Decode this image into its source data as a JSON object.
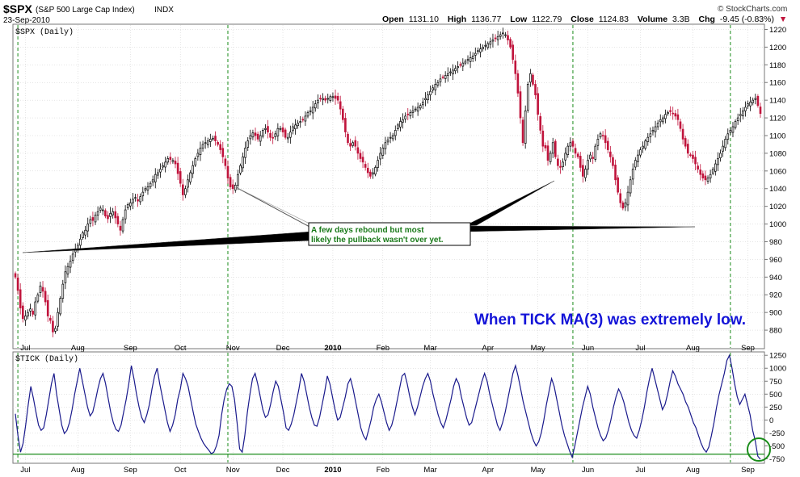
{
  "header": {
    "symbol": "$SPX",
    "name": "(S&P 500 Large Cap Index)",
    "exchange": "INDX",
    "date": "23-Sep-2010",
    "brand": "© StockCharts.com",
    "open_label": "Open",
    "open_value": "1131.10",
    "high_label": "High",
    "high_value": "1136.77",
    "low_label": "Low",
    "low_value": "1122.79",
    "close_label": "Close",
    "close_value": "1124.83",
    "volume_label": "Volume",
    "volume_value": "3.3B",
    "chg_label": "Chg",
    "chg_value": "-9.45 (-0.83%)",
    "chg_marker": "▼"
  },
  "colors": {
    "up": "#000000",
    "down": "#c0143c",
    "tick_line": "#1a1a8c",
    "vline": "#1a8c1a",
    "zero_line": "#1a8c1a",
    "grid": "#cccccc",
    "note_text": "#1a7a1a",
    "big_note_text": "#1414d8"
  },
  "annotations": {
    "callout_line1": "A few days rebound but most",
    "callout_line2": "likely the pullback wasn't over yet.",
    "tick_note": "When TICK MA(3) was extremely low."
  },
  "chart_data": [
    {
      "type": "candlestick",
      "panel_label": "$SPX (Daily)",
      "ylim": [
        860,
        1225
      ],
      "yticks": [
        880,
        900,
        920,
        940,
        960,
        980,
        1000,
        1020,
        1040,
        1060,
        1080,
        1100,
        1120,
        1140,
        1160,
        1180,
        1200,
        1220
      ],
      "months": [
        "Jul",
        "Aug",
        "Sep",
        "Oct",
        "Nov",
        "Dec",
        "2010",
        "Feb",
        "Mar",
        "Apr",
        "May",
        "Jun",
        "Jul",
        "Aug",
        "Sep"
      ],
      "month_start_index": [
        4,
        25,
        46,
        66,
        87,
        107,
        127,
        147,
        166,
        189,
        209,
        229,
        250,
        271,
        293
      ],
      "signal_index": [
        1,
        85,
        223,
        286
      ],
      "closes": [
        940,
        925,
        905,
        893,
        896,
        900,
        904,
        898,
        912,
        920,
        930,
        924,
        912,
        896,
        891,
        878,
        882,
        900,
        916,
        932,
        946,
        952,
        958,
        966,
        972,
        976,
        983,
        990,
        993,
        1000,
        1005,
        1004,
        1010,
        1014,
        1018,
        1016,
        1009,
        1006,
        1012,
        1014,
        1007,
        1000,
        993,
        1005,
        1016,
        1022,
        1024,
        1028,
        1030,
        1026,
        1031,
        1036,
        1040,
        1042,
        1046,
        1050,
        1056,
        1058,
        1062,
        1066,
        1070,
        1074,
        1073,
        1072,
        1068,
        1057,
        1046,
        1033,
        1040,
        1050,
        1058,
        1066,
        1074,
        1080,
        1086,
        1090,
        1092,
        1094,
        1096,
        1097,
        1094,
        1090,
        1084,
        1076,
        1066,
        1052,
        1042,
        1040,
        1044,
        1056,
        1066,
        1076,
        1086,
        1094,
        1100,
        1103,
        1100,
        1096,
        1100,
        1106,
        1108,
        1104,
        1098,
        1097,
        1102,
        1108,
        1108,
        1104,
        1098,
        1098,
        1104,
        1110,
        1112,
        1114,
        1116,
        1118,
        1122,
        1126,
        1128,
        1132,
        1136,
        1140,
        1142,
        1142,
        1140,
        1142,
        1144,
        1144,
        1142,
        1140,
        1130,
        1118,
        1104,
        1092,
        1088,
        1092,
        1088,
        1080,
        1074,
        1070,
        1064,
        1058,
        1054,
        1058,
        1064,
        1072,
        1080,
        1086,
        1092,
        1095,
        1098,
        1100,
        1106,
        1112,
        1116,
        1118,
        1122,
        1124,
        1126,
        1128,
        1130,
        1132,
        1134,
        1138,
        1142,
        1146,
        1150,
        1154,
        1158,
        1160,
        1164,
        1166,
        1168,
        1170,
        1172,
        1174,
        1176,
        1178,
        1180,
        1182,
        1184,
        1186,
        1188,
        1190,
        1193,
        1196,
        1198,
        1200,
        1202,
        1204,
        1206,
        1208,
        1210,
        1212,
        1214,
        1216,
        1214,
        1208,
        1200,
        1186,
        1170,
        1148,
        1120,
        1092,
        1128,
        1158,
        1170,
        1158,
        1146,
        1124,
        1106,
        1088,
        1086,
        1072,
        1080,
        1092,
        1076,
        1066,
        1064,
        1070,
        1080,
        1088,
        1092,
        1088,
        1080,
        1076,
        1064,
        1054,
        1062,
        1072,
        1078,
        1074,
        1088,
        1096,
        1102,
        1100,
        1092,
        1084,
        1076,
        1066,
        1050,
        1036,
        1024,
        1018,
        1024,
        1036,
        1050,
        1062,
        1072,
        1078,
        1084,
        1088,
        1094,
        1098,
        1102,
        1106,
        1110,
        1114,
        1118,
        1120,
        1124,
        1126,
        1127,
        1125,
        1122,
        1118,
        1108,
        1096,
        1088,
        1080,
        1078,
        1074,
        1068,
        1062,
        1056,
        1052,
        1050,
        1052,
        1056,
        1062,
        1068,
        1074,
        1080,
        1088,
        1096,
        1102,
        1106,
        1110,
        1116,
        1120,
        1124,
        1128,
        1132,
        1136,
        1138,
        1140,
        1142,
        1134,
        1125
      ]
    },
    {
      "type": "line",
      "panel_label": "$TICK (Daily)",
      "ylim": [
        -820,
        1300
      ],
      "yticks": [
        -750,
        -500,
        -250,
        0,
        250,
        500,
        750,
        1000,
        1250
      ],
      "values": [
        120,
        -300,
        -620,
        -450,
        -100,
        300,
        650,
        420,
        150,
        -100,
        -200,
        -150,
        100,
        400,
        700,
        900,
        500,
        200,
        -100,
        -260,
        -200,
        -50,
        200,
        500,
        750,
        1000,
        750,
        500,
        250,
        80,
        150,
        360,
        600,
        800,
        900,
        700,
        420,
        150,
        -50,
        -180,
        -220,
        -100,
        150,
        400,
        700,
        1050,
        800,
        500,
        250,
        50,
        -50,
        100,
        300,
        600,
        850,
        1000,
        700,
        450,
        200,
        -50,
        -220,
        -100,
        100,
        400,
        600,
        900,
        800,
        650,
        400,
        150,
        -80,
        -220,
        -350,
        -450,
        -520,
        -580,
        -650,
        -620,
        -500,
        -300,
        100,
        400,
        600,
        700,
        650,
        400,
        -50,
        -560,
        -620,
        -300,
        150,
        500,
        800,
        900,
        700,
        450,
        200,
        50,
        100,
        300,
        550,
        750,
        650,
        400,
        150,
        -150,
        -200,
        -80,
        100,
        350,
        600,
        900,
        750,
        500,
        250,
        50,
        -100,
        -120,
        50,
        300,
        550,
        850,
        700,
        450,
        200,
        0,
        50,
        250,
        450,
        700,
        800,
        600,
        350,
        100,
        -150,
        -300,
        -380,
        -200,
        0,
        250,
        400,
        500,
        350,
        150,
        -50,
        -200,
        -100,
        100,
        350,
        600,
        850,
        900,
        700,
        450,
        250,
        100,
        250,
        450,
        650,
        800,
        900,
        750,
        500,
        300,
        100,
        -50,
        -150,
        0,
        200,
        400,
        650,
        800,
        700,
        450,
        250,
        50,
        -100,
        -50,
        150,
        350,
        550,
        750,
        900,
        750,
        500,
        300,
        100,
        -100,
        -200,
        -50,
        150,
        400,
        650,
        900,
        1050,
        850,
        600,
        350,
        150,
        -50,
        -250,
        -400,
        -500,
        -420,
        -250,
        0,
        300,
        550,
        800,
        650,
        400,
        150,
        -100,
        -300,
        -450,
        -600,
        -720,
        -500,
        -250,
        0,
        250,
        450,
        650,
        500,
        250,
        50,
        -150,
        -300,
        -400,
        -350,
        -200,
        0,
        250,
        450,
        600,
        500,
        350,
        150,
        -50,
        -200,
        -300,
        -350,
        -200,
        0,
        250,
        550,
        800,
        1000,
        800,
        600,
        400,
        200,
        300,
        500,
        750,
        950,
        850,
        700,
        600,
        500,
        350,
        250,
        100,
        -50,
        -150,
        -300,
        -450,
        -560,
        -620,
        -520,
        -300,
        -50,
        250,
        500,
        700,
        900,
        1150,
        1250,
        1000,
        700,
        450,
        300,
        400,
        500,
        300,
        100,
        -200,
        -400,
        -700,
        -760
      ]
    }
  ]
}
